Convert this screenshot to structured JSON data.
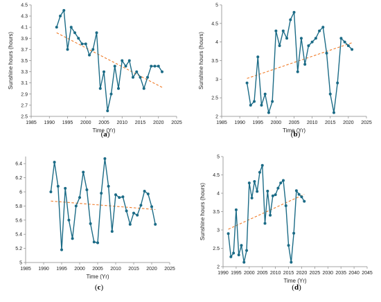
{
  "colors": {
    "series": "#1b6b86",
    "trend": "#f07b28",
    "axis": "#888888"
  },
  "chart_data": [
    {
      "type": "line",
      "panel_label": "a",
      "xlabel": "Time (Yr)",
      "ylabel": "Sunshine hours (hours)",
      "xlim": [
        1985,
        2025
      ],
      "ylim": [
        2.5,
        4.5
      ],
      "xticks": [
        "1985",
        "1990",
        "1995",
        "2000",
        "2005",
        "2010",
        "2015",
        "2020",
        "2025"
      ],
      "yticks": [
        "2.5",
        "2.7",
        "2.9",
        "3.1",
        "3.3",
        "3.5",
        "3.7",
        "3.9",
        "4.1",
        "4.3",
        "4.5"
      ],
      "grid": false,
      "x": [
        1992,
        1993,
        1994,
        1995,
        1996,
        1997,
        1998,
        1999,
        2000,
        2001,
        2002,
        2003,
        2004,
        2005,
        2006,
        2007,
        2008,
        2009,
        2010,
        2011,
        2012,
        2013,
        2014,
        2015,
        2016,
        2017,
        2018,
        2019,
        2020,
        2021
      ],
      "y": [
        4.1,
        4.3,
        4.4,
        3.7,
        4.1,
        4.0,
        3.9,
        3.8,
        3.8,
        3.6,
        3.7,
        4.0,
        3.0,
        3.3,
        2.6,
        2.9,
        3.4,
        3.0,
        3.5,
        3.4,
        3.5,
        3.2,
        3.3,
        3.2,
        3.0,
        3.2,
        3.4,
        3.4,
        3.4,
        3.3
      ],
      "trendline": {
        "x": [
          1992,
          2021
        ],
        "y": [
          4.0,
          3.02
        ]
      }
    },
    {
      "type": "line",
      "panel_label": "b",
      "xlabel": "Time (Yr)",
      "ylabel": "Sunshine hours (hours)",
      "xlim": [
        1985,
        2025
      ],
      "ylim": [
        2,
        5
      ],
      "xticks": [
        "1985",
        "1990",
        "1995",
        "2000",
        "2005",
        "2010",
        "2015",
        "2020",
        "2025"
      ],
      "yticks": [
        "2",
        "2.5",
        "3",
        "3.5",
        "4",
        "4.5",
        "5"
      ],
      "grid": false,
      "x": [
        1992,
        1993,
        1994,
        1995,
        1996,
        1997,
        1998,
        1999,
        2000,
        2001,
        2002,
        2003,
        2004,
        2005,
        2006,
        2007,
        2008,
        2009,
        2010,
        2011,
        2012,
        2013,
        2014,
        2015,
        2016,
        2017,
        2018,
        2019,
        2020,
        2021
      ],
      "y": [
        2.9,
        2.3,
        2.4,
        3.6,
        2.3,
        2.6,
        2.1,
        2.4,
        4.3,
        3.9,
        4.3,
        4.1,
        4.6,
        4.8,
        3.2,
        4.1,
        3.4,
        3.9,
        4.0,
        4.1,
        4.3,
        4.4,
        3.7,
        2.6,
        2.1,
        2.9,
        4.1,
        4.0,
        3.9,
        3.8
      ],
      "trendline": {
        "x": [
          1992,
          2021
        ],
        "y": [
          3.02,
          3.98
        ]
      }
    },
    {
      "type": "line",
      "panel_label": "c",
      "xlabel": "Time (Yr)",
      "ylabel": "",
      "xlim": [
        1985,
        2025
      ],
      "ylim": [
        5,
        6.5
      ],
      "xticks": [
        "1985",
        "1990",
        "1995",
        "2000",
        "2005",
        "2010",
        "2015",
        "2020",
        "2025"
      ],
      "yticks": [
        "5",
        "5.2",
        "5.4",
        "5.6",
        "5.8",
        "6",
        "6.2",
        "6.4"
      ],
      "grid": false,
      "x": [
        1992,
        1993,
        1994,
        1995,
        1996,
        1997,
        1998,
        1999,
        2000,
        2001,
        2002,
        2003,
        2004,
        2005,
        2006,
        2007,
        2008,
        2009,
        2010,
        2011,
        2012,
        2013,
        2014,
        2015,
        2016,
        2017,
        2018,
        2019,
        2020,
        2021
      ],
      "y": [
        6.0,
        6.42,
        6.08,
        5.18,
        6.05,
        5.6,
        5.34,
        5.8,
        5.92,
        6.28,
        6.03,
        5.55,
        5.29,
        5.28,
        5.98,
        6.47,
        6.08,
        5.44,
        5.96,
        5.92,
        5.93,
        5.73,
        5.54,
        5.7,
        5.67,
        5.81,
        6.01,
        5.97,
        5.79,
        5.54
      ],
      "trendline": {
        "x": [
          1992,
          2021
        ],
        "y": [
          5.87,
          5.75
        ]
      }
    },
    {
      "type": "line",
      "panel_label": "d",
      "xlabel": "Time (Yr)",
      "ylabel": "Sunshine hours (hours)",
      "xlim": [
        1990,
        2045
      ],
      "ylim": [
        2,
        5
      ],
      "xticks": [
        "1990",
        "1995",
        "2000",
        "2005",
        "2010",
        "2015",
        "2020",
        "2025",
        "2030",
        "2035",
        "2040",
        "2045"
      ],
      "yticks": [
        "2",
        "2.5",
        "3",
        "3.5",
        "4",
        "4.5",
        "5"
      ],
      "grid": false,
      "x": [
        1992,
        1993,
        1994,
        1995,
        1996,
        1997,
        1998,
        1999,
        2000,
        2001,
        2002,
        2003,
        2004,
        2005,
        2006,
        2007,
        2008,
        2009,
        2010,
        2011,
        2012,
        2013,
        2014,
        2015,
        2016,
        2017,
        2018,
        2019,
        2020,
        2021
      ],
      "y": [
        2.9,
        2.27,
        2.37,
        3.55,
        2.32,
        2.58,
        2.12,
        2.44,
        4.28,
        3.87,
        4.32,
        4.05,
        4.57,
        4.76,
        3.18,
        4.06,
        3.4,
        3.93,
        3.96,
        4.14,
        4.28,
        4.35,
        3.66,
        2.58,
        2.12,
        2.91,
        4.07,
        3.97,
        3.9,
        3.78
      ],
      "trendline": {
        "x": [
          1992,
          2021
        ],
        "y": [
          3.02,
          3.97
        ]
      }
    }
  ]
}
